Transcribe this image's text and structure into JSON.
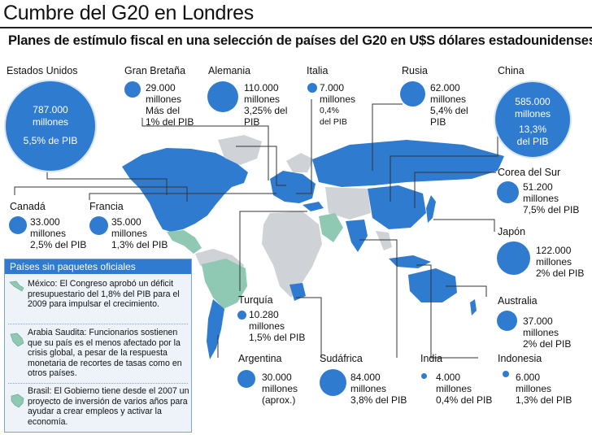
{
  "title": "Cumbre del G20 en Londres",
  "subtitle": "Planes de estímulo fiscal en una selección de países del G20 en U$S dólares estadounidenses",
  "colors": {
    "bubble": "#2f7bd0",
    "land_g20": "#2f7bd0",
    "land_no_package": "#8fc9b4",
    "land_other": "#cfd3d8"
  },
  "countries": {
    "eeuu": {
      "name": "Estados Unidos",
      "amount": "787.000",
      "unit": "millones",
      "gdp": "5,5% de PIB",
      "value_musd": 787000
    },
    "gran_bretana": {
      "name": "Gran Bretaña",
      "amount": "29.000",
      "unit": "millones",
      "line3": "Más del",
      "line4": "1% del PIB",
      "value_musd": 29000
    },
    "alemania": {
      "name": "Alemania",
      "amount": "110.000",
      "unit": "millones",
      "line3": "3,25% del",
      "line4": "PIB",
      "value_musd": 110000
    },
    "italia": {
      "name": "Italia",
      "amount": "7.000",
      "unit": "millones",
      "line3": "0,4%",
      "line4": "del PIB",
      "value_musd": 7000
    },
    "rusia": {
      "name": "Rusia",
      "amount": "62.000",
      "unit": "millones",
      "line3": "5,4% del",
      "line4": "PIB",
      "value_musd": 62000
    },
    "china": {
      "name": "China",
      "amount": "585.000",
      "unit": "millones",
      "line3": "13,3%",
      "line4": "del PIB",
      "value_musd": 585000
    },
    "canada": {
      "name": "Canadá",
      "amount": "33.000",
      "unit": "millones",
      "gdp": "2,5% del PIB",
      "value_musd": 33000
    },
    "francia": {
      "name": "Francia",
      "amount": "35.000",
      "unit": "millones",
      "gdp": "1,3% del PIB",
      "value_musd": 35000
    },
    "corea": {
      "name": "Corea del Sur",
      "amount": "51.200",
      "unit": "millones",
      "gdp": "7,5% del PIB",
      "value_musd": 51200
    },
    "japon": {
      "name": "Japón",
      "amount": "122.000",
      "unit": "millones",
      "gdp": "2% del PIB",
      "value_musd": 122000
    },
    "turquia": {
      "name": "Turquía",
      "amount": "10.280",
      "unit": "millones",
      "gdp": "1,5% del PIB",
      "value_musd": 10280
    },
    "australia": {
      "name": "Australia",
      "amount": "37.000",
      "unit": "millones",
      "gdp": "2% del PIB",
      "value_musd": 37000
    },
    "argentina": {
      "name": "Argentina",
      "amount": "30.000",
      "unit": "millones",
      "gdp": "(aprox.)",
      "value_musd": 30000
    },
    "sudafrica": {
      "name": "Sudáfrica",
      "amount": "84.000",
      "unit": "millones",
      "gdp": "3,8% del PIB",
      "value_musd": 84000
    },
    "india": {
      "name": "India",
      "amount": "4.000",
      "unit": "millones",
      "gdp": "0,4% del PIB",
      "value_musd": 4000
    },
    "indonesia": {
      "name": "Indonesia",
      "amount": "6.000",
      "unit": "millones",
      "gdp": "1,3% del PIB",
      "value_musd": 6000
    }
  },
  "panel": {
    "title": "Países sin paquetes oficiales",
    "mexico": "México: El Congreso aprobó un déficit presupuestario del 1,8% del PIB para el 2009 para impulsar el crecimiento.",
    "arabia": "Arabia Saudita: Funcionarios sostienen que su país es el menos afectado por la crisis global, a pesar de la respuesta monetaria de recortes de tasas como en otros países.",
    "brasil": "Brasil: El Gobierno tiene desde el 2007 un proyecto de inversión de varios años para ayudar a crear empleos y activar la economía."
  }
}
